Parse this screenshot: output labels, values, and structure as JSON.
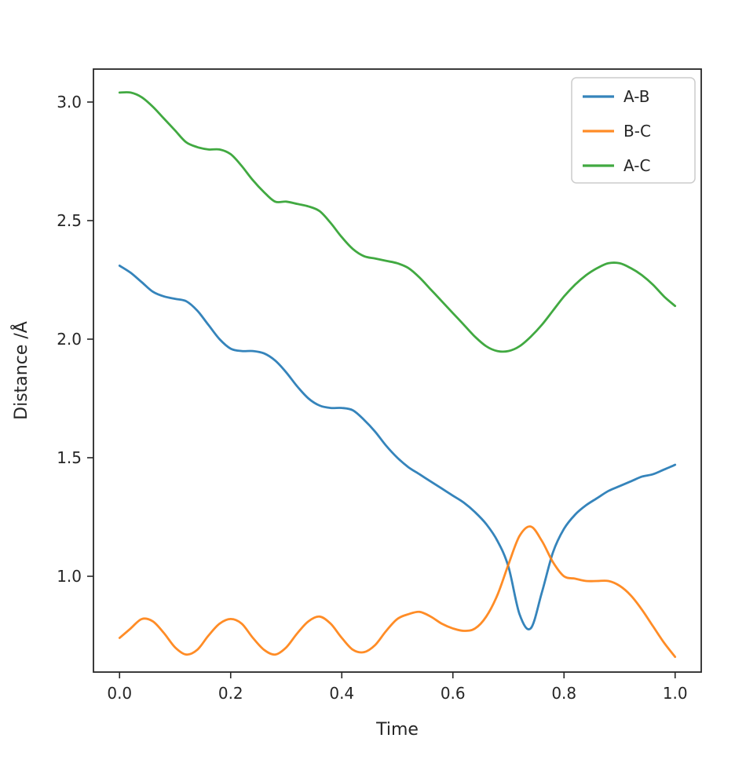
{
  "chart_data": {
    "type": "line",
    "title": "",
    "xlabel": "Time",
    "ylabel": "Distance /Å",
    "xlim": [
      -0.047,
      1.047
    ],
    "ylim": [
      0.596,
      3.139
    ],
    "xticks": [
      0.0,
      0.2,
      0.4,
      0.6,
      0.8,
      1.0
    ],
    "yticks": [
      1.0,
      1.5,
      2.0,
      2.5,
      3.0
    ],
    "grid": false,
    "legend_position": "upper right",
    "x": [
      0.0,
      0.02,
      0.04,
      0.06,
      0.08,
      0.1,
      0.12,
      0.14,
      0.16,
      0.18,
      0.2,
      0.22,
      0.24,
      0.26,
      0.28,
      0.3,
      0.32,
      0.34,
      0.36,
      0.38,
      0.4,
      0.42,
      0.44,
      0.46,
      0.48,
      0.5,
      0.52,
      0.54,
      0.56,
      0.58,
      0.6,
      0.62,
      0.64,
      0.66,
      0.68,
      0.7,
      0.72,
      0.74,
      0.76,
      0.78,
      0.8,
      0.82,
      0.84,
      0.86,
      0.88,
      0.9,
      0.92,
      0.94,
      0.96,
      0.98,
      1.0
    ],
    "series": [
      {
        "name": "A-B",
        "color": "#1f77b4",
        "values": [
          2.31,
          2.28,
          2.24,
          2.2,
          2.18,
          2.17,
          2.16,
          2.12,
          2.06,
          2.0,
          1.96,
          1.95,
          1.95,
          1.94,
          1.91,
          1.86,
          1.8,
          1.75,
          1.72,
          1.71,
          1.71,
          1.7,
          1.66,
          1.61,
          1.55,
          1.5,
          1.46,
          1.43,
          1.4,
          1.37,
          1.34,
          1.31,
          1.27,
          1.22,
          1.15,
          1.04,
          0.84,
          0.78,
          0.93,
          1.1,
          1.2,
          1.26,
          1.3,
          1.33,
          1.36,
          1.38,
          1.4,
          1.42,
          1.43,
          1.45,
          1.47
        ]
      },
      {
        "name": "B-C",
        "color": "#ff7f0e",
        "values": [
          0.74,
          0.78,
          0.82,
          0.81,
          0.76,
          0.7,
          0.67,
          0.69,
          0.75,
          0.8,
          0.82,
          0.8,
          0.74,
          0.69,
          0.67,
          0.7,
          0.76,
          0.81,
          0.83,
          0.8,
          0.74,
          0.69,
          0.68,
          0.71,
          0.77,
          0.82,
          0.84,
          0.85,
          0.83,
          0.8,
          0.78,
          0.77,
          0.78,
          0.83,
          0.92,
          1.05,
          1.17,
          1.21,
          1.15,
          1.06,
          1.0,
          0.99,
          0.98,
          0.98,
          0.98,
          0.96,
          0.92,
          0.86,
          0.79,
          0.72,
          0.66
        ]
      },
      {
        "name": "A-C",
        "color": "#2ca02c",
        "values": [
          3.04,
          3.04,
          3.02,
          2.98,
          2.93,
          2.88,
          2.83,
          2.81,
          2.8,
          2.8,
          2.78,
          2.73,
          2.67,
          2.62,
          2.58,
          2.58,
          2.57,
          2.56,
          2.54,
          2.49,
          2.43,
          2.38,
          2.35,
          2.34,
          2.33,
          2.32,
          2.3,
          2.26,
          2.21,
          2.16,
          2.11,
          2.06,
          2.01,
          1.97,
          1.95,
          1.95,
          1.97,
          2.01,
          2.06,
          2.12,
          2.18,
          2.23,
          2.27,
          2.3,
          2.32,
          2.32,
          2.3,
          2.27,
          2.23,
          2.18,
          2.14
        ]
      }
    ]
  },
  "axes": {
    "spine_color": "#262626",
    "tick_label_color": "#262626",
    "legend_border_color": "#cccccc",
    "background": "#ffffff"
  }
}
